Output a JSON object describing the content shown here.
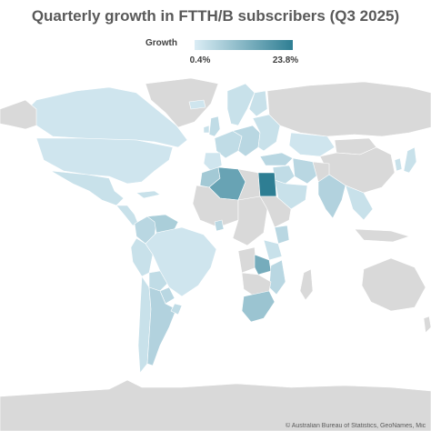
{
  "title": "Quarterly growth in FTTH/B subscribers (Q3 2025)",
  "legend": {
    "label": "Growth",
    "min_label": "0.4%",
    "max_label": "23.8%",
    "min_value": 0.4,
    "max_value": 23.8,
    "color_low": "#dbedf5",
    "color_high": "#2e7e93",
    "no_data_color": "#d9d9d9"
  },
  "attribution": "© Australian Bureau of Statistics, GeoNames, Mic",
  "regions": [
    {
      "id": "north-america",
      "value": null
    },
    {
      "id": "canada",
      "value": 2
    },
    {
      "id": "usa",
      "value": 2
    },
    {
      "id": "mexico",
      "value": 3
    },
    {
      "id": "central-america",
      "value": 3
    },
    {
      "id": "cuba",
      "value": 3
    },
    {
      "id": "greenland",
      "value": null
    },
    {
      "id": "colombia",
      "value": 5
    },
    {
      "id": "venezuela",
      "value": 7
    },
    {
      "id": "peru",
      "value": 3
    },
    {
      "id": "brazil",
      "value": 2
    },
    {
      "id": "bolivia",
      "value": 4
    },
    {
      "id": "paraguay",
      "value": 5
    },
    {
      "id": "chile",
      "value": 3
    },
    {
      "id": "argentina",
      "value": 6
    },
    {
      "id": "uruguay",
      "value": 4
    },
    {
      "id": "russia",
      "value": null
    },
    {
      "id": "uk",
      "value": 4
    },
    {
      "id": "ireland",
      "value": 3
    },
    {
      "id": "iceland",
      "value": 2
    },
    {
      "id": "scandinavia",
      "value": 3
    },
    {
      "id": "finland",
      "value": 3
    },
    {
      "id": "western-europe",
      "value": 4
    },
    {
      "id": "iberia",
      "value": 2
    },
    {
      "id": "central-europe",
      "value": 5
    },
    {
      "id": "eastern-europe",
      "value": 3
    },
    {
      "id": "turkey",
      "value": 5
    },
    {
      "id": "kazakhstan",
      "value": 2
    },
    {
      "id": "mongolia",
      "value": null
    },
    {
      "id": "china",
      "value": null
    },
    {
      "id": "korea",
      "value": 3
    },
    {
      "id": "japan",
      "value": 3
    },
    {
      "id": "middle-east",
      "value": 4
    },
    {
      "id": "iran",
      "value": 5
    },
    {
      "id": "saudi-arabia",
      "value": 3
    },
    {
      "id": "afghanistan-pakistan",
      "value": null
    },
    {
      "id": "india",
      "value": 6
    },
    {
      "id": "southeast-asia",
      "value": 3
    },
    {
      "id": "indonesia",
      "value": null
    },
    {
      "id": "australia",
      "value": null
    },
    {
      "id": "new-zealand",
      "value": null
    },
    {
      "id": "morocco",
      "value": 8
    },
    {
      "id": "algeria",
      "value": 16
    },
    {
      "id": "libya",
      "value": null
    },
    {
      "id": "egypt",
      "value": 23.8
    },
    {
      "id": "west-africa",
      "value": null
    },
    {
      "id": "ghana",
      "value": 5
    },
    {
      "id": "central-africa",
      "value": null
    },
    {
      "id": "east-africa",
      "value": null
    },
    {
      "id": "kenya",
      "value": 5
    },
    {
      "id": "tanzania",
      "value": 3
    },
    {
      "id": "angola",
      "value": null
    },
    {
      "id": "zambia",
      "value": 14
    },
    {
      "id": "southern-africa",
      "value": null
    },
    {
      "id": "mozambique",
      "value": 5
    },
    {
      "id": "south-africa",
      "value": 9
    },
    {
      "id": "madagascar",
      "value": null
    },
    {
      "id": "antarctica",
      "value": null
    }
  ]
}
